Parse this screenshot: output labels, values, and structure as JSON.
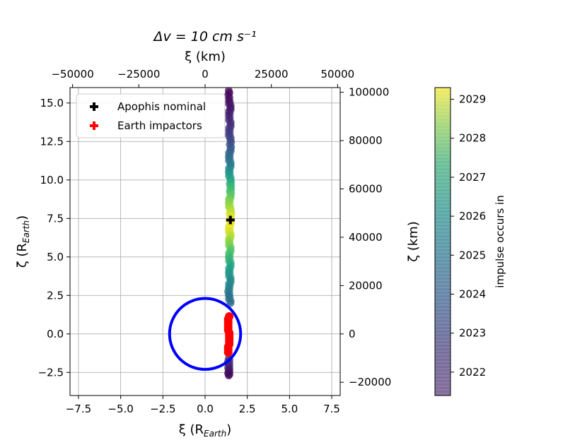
{
  "chart_data": {
    "type": "scatter",
    "title": "Δv = 10 cm s⁻¹",
    "xlabel_bottom": "ξ (R",
    "xlabel_bottom_sub": "Earth",
    "xlabel_bottom_end": ")",
    "ylabel_left": "ζ (R",
    "ylabel_left_sub": "Earth",
    "ylabel_left_end": ")",
    "xlabel_top": "ξ (km)",
    "ylabel_right": "ζ (km)",
    "colorbar_label": "impulse occurs in",
    "xlim": [
      -8,
      8
    ],
    "ylim": [
      -4,
      16
    ],
    "km_per_earth_radius": 6371,
    "grid": true,
    "legend_position": "top-left",
    "x_ticks": [
      -7.5,
      -5.0,
      -2.5,
      0.0,
      2.5,
      5.0,
      7.5
    ],
    "x_tick_labels": [
      "−7.5",
      "−5.0",
      "−2.5",
      "0.0",
      "2.5",
      "5.0",
      "7.5"
    ],
    "y_ticks": [
      -2.5,
      0.0,
      2.5,
      5.0,
      7.5,
      10.0,
      12.5,
      15.0
    ],
    "y_tick_labels": [
      "−2.5",
      "0.0",
      "2.5",
      "5.0",
      "7.5",
      "10.0",
      "12.5",
      "15.0"
    ],
    "top_ticks_km": [
      -50000,
      -25000,
      0,
      25000,
      50000
    ],
    "top_tick_labels": [
      "−50000",
      "−25000",
      "0",
      "25000",
      "50000"
    ],
    "right_ticks_km": [
      -20000,
      0,
      20000,
      40000,
      60000,
      80000,
      100000
    ],
    "right_tick_labels": [
      "−20000",
      "0",
      "20000",
      "40000",
      "60000",
      "80000",
      "100000"
    ],
    "colorbar": {
      "range": [
        2021.4,
        2029.3
      ],
      "ticks": [
        2022,
        2023,
        2024,
        2025,
        2026,
        2027,
        2028,
        2029
      ],
      "tick_labels": [
        "2022",
        "2023",
        "2024",
        "2025",
        "2026",
        "2027",
        "2028",
        "2029"
      ],
      "colormap": "viridis"
    },
    "earth_circle": {
      "center": [
        0,
        0
      ],
      "radius": 2.2,
      "color": "#0000ff"
    },
    "series": [
      {
        "name": "Apophis nominal",
        "marker": "plus",
        "color": "#000000",
        "points": [
          [
            1.5,
            7.4
          ]
        ]
      },
      {
        "name": "Earth impactors",
        "marker": "plus",
        "color": "#ff0000",
        "points": [
          [
            1.4,
            -1.2
          ],
          [
            1.4,
            -0.6
          ],
          [
            1.4,
            0.0
          ],
          [
            1.4,
            0.6
          ],
          [
            1.4,
            1.2
          ]
        ]
      }
    ],
    "impulse_trail": [
      [
        1.4,
        15.8,
        2021.5
      ],
      [
        1.4,
        15.2,
        2021.7
      ],
      [
        1.5,
        14.7,
        2021.9
      ],
      [
        1.4,
        14.2,
        2022.1
      ],
      [
        1.5,
        13.6,
        2022.4
      ],
      [
        1.4,
        13.1,
        2022.7
      ],
      [
        1.5,
        12.6,
        2023.0
      ],
      [
        1.5,
        12.0,
        2023.5
      ],
      [
        1.4,
        11.5,
        2024.0
      ],
      [
        1.5,
        11.0,
        2024.6
      ],
      [
        1.4,
        10.5,
        2025.3
      ],
      [
        1.5,
        10.0,
        2026.0
      ],
      [
        1.5,
        9.5,
        2026.6
      ],
      [
        1.5,
        9.0,
        2027.2
      ],
      [
        1.4,
        8.5,
        2027.8
      ],
      [
        1.5,
        8.0,
        2028.4
      ],
      [
        1.5,
        7.6,
        2028.9
      ],
      [
        1.5,
        7.2,
        2029.1
      ],
      [
        1.4,
        6.8,
        2029.0
      ],
      [
        1.5,
        6.4,
        2028.6
      ],
      [
        1.4,
        6.0,
        2028.0
      ],
      [
        1.5,
        5.5,
        2027.3
      ],
      [
        1.4,
        5.0,
        2026.7
      ],
      [
        1.5,
        4.5,
        2026.2
      ],
      [
        1.4,
        4.0,
        2025.7
      ],
      [
        1.5,
        3.5,
        2025.3
      ],
      [
        1.4,
        3.0,
        2024.9
      ],
      [
        1.4,
        2.5,
        2024.5
      ],
      [
        1.5,
        2.0,
        2024.2
      ],
      [
        1.4,
        -1.6,
        2022.8
      ],
      [
        1.4,
        -2.0,
        2022.4
      ],
      [
        1.4,
        -2.4,
        2021.9
      ],
      [
        1.4,
        -2.7,
        2021.6
      ]
    ]
  }
}
